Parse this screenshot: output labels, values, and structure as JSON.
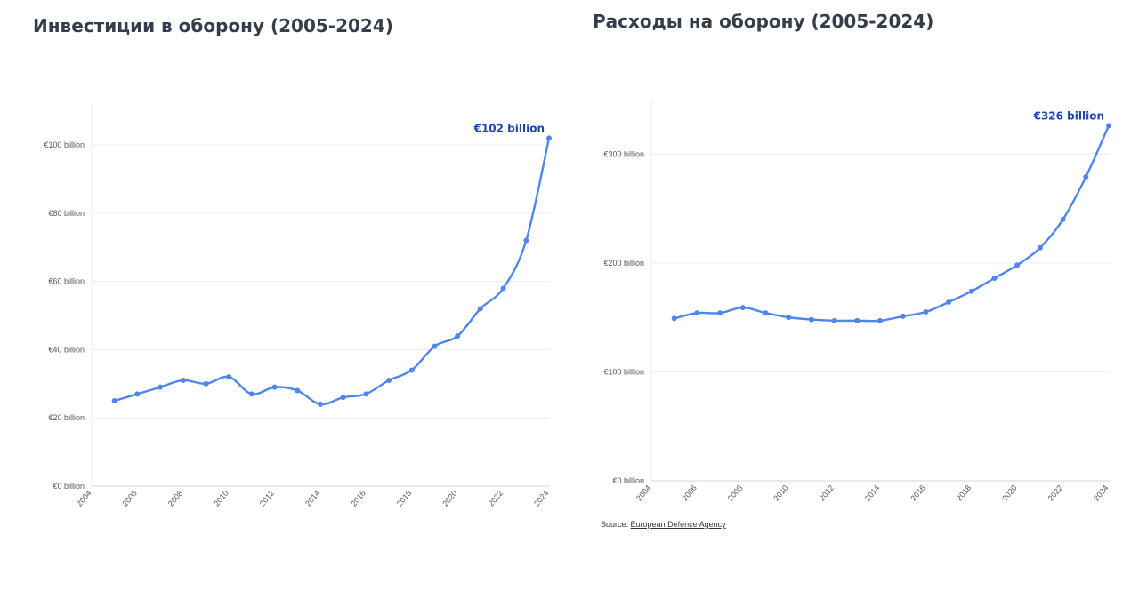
{
  "chart_data": [
    {
      "type": "line",
      "title": "Инвестиции в оборону (2005-2024)",
      "x": [
        2005,
        2006,
        2007,
        2008,
        2009,
        2010,
        2011,
        2012,
        2013,
        2014,
        2015,
        2016,
        2017,
        2018,
        2019,
        2020,
        2021,
        2022,
        2023,
        2024
      ],
      "values": [
        25,
        27,
        29,
        31,
        30,
        32,
        27,
        29,
        28,
        24,
        26,
        27,
        31,
        34,
        41,
        44,
        52,
        58,
        72,
        102
      ],
      "xlim": [
        2004,
        2024
      ],
      "ylim": [
        0,
        112
      ],
      "x_ticks": [
        2004,
        2006,
        2008,
        2010,
        2012,
        2014,
        2016,
        2018,
        2020,
        2022,
        2024
      ],
      "x_tick_labels": [
        "2004",
        "2006",
        "2008",
        "2010",
        "2012",
        "2014",
        "2016",
        "2018",
        "2020",
        "2022",
        "2024"
      ],
      "y_ticks": [
        0,
        20,
        40,
        60,
        80,
        100
      ],
      "y_tick_labels": [
        "€0 billion",
        "€20 billion",
        "€40 billion",
        "€60 billion",
        "€80 billion",
        "€100 billion"
      ],
      "grid": true,
      "last_value_label": "€102 billion",
      "line_color": "#4f86ec",
      "label_color": "#1f45a8"
    },
    {
      "type": "line",
      "title": "Расходы на оборону (2005-2024)",
      "x": [
        2005,
        2006,
        2007,
        2008,
        2009,
        2010,
        2011,
        2012,
        2013,
        2014,
        2015,
        2016,
        2017,
        2018,
        2019,
        2020,
        2021,
        2022,
        2023,
        2024
      ],
      "values": [
        149,
        154,
        154,
        159,
        154,
        150,
        148,
        147,
        147,
        147,
        151,
        155,
        164,
        174,
        186,
        198,
        214,
        240,
        279,
        326
      ],
      "xlim": [
        2004,
        2024
      ],
      "ylim": [
        0,
        350
      ],
      "x_ticks": [
        2004,
        2006,
        2008,
        2010,
        2012,
        2014,
        2016,
        2018,
        2020,
        2022,
        2024
      ],
      "x_tick_labels": [
        "2004",
        "2006",
        "2008",
        "2010",
        "2012",
        "2014",
        "2016",
        "2018",
        "2020",
        "2022",
        "2024"
      ],
      "y_ticks": [
        0,
        100,
        200,
        300
      ],
      "y_tick_labels": [
        "€0 billion",
        "€100 billion",
        "€200 billion",
        "€300 billion"
      ],
      "grid": true,
      "last_value_label": "€326 billion",
      "line_color": "#4f86ec",
      "label_color": "#1f45a8"
    }
  ],
  "source": {
    "prefix": "Source: ",
    "link_text": "European Defence Agency"
  }
}
